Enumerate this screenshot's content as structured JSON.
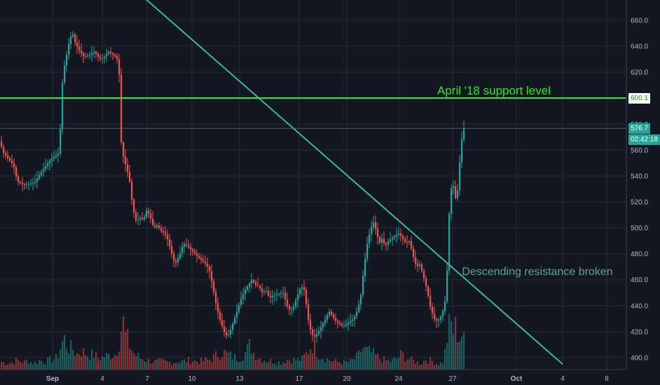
{
  "colors": {
    "background": "#131722",
    "grid": "#242a38",
    "up_candle": "#26a69a",
    "down_candle": "#ef5350",
    "support_line": "#2ee82e",
    "trend_line": "#3bb59b",
    "axis_text": "#b2b5be"
  },
  "price_axis": {
    "ticks": [
      "660.0",
      "640.0",
      "620.0",
      "600.0",
      "580.0",
      "560.0",
      "540.0",
      "520.0",
      "500.0",
      "480.0",
      "460.0",
      "440.0",
      "420.0",
      "400.0"
    ]
  },
  "time_axis": {
    "ticks": [
      "Sep",
      "4",
      "7",
      "10",
      "13",
      "17",
      "20",
      "24",
      "27",
      "Oct",
      "4",
      "8"
    ]
  },
  "price_tags": {
    "support": "600.1",
    "last": "576.7",
    "timer": "02:42:18"
  },
  "annotations": {
    "support_label": "April '18 support level",
    "resistance_label": "Descending resistance broken"
  },
  "chart_data": {
    "type": "candlestick",
    "y_axis_ticks": [
      660,
      640,
      620,
      600,
      580,
      560,
      540,
      520,
      500,
      480,
      460,
      440,
      420,
      400
    ],
    "ylim": [
      394,
      668
    ],
    "x_axis_ticks": [
      "Sep",
      "4",
      "7",
      "10",
      "13",
      "17",
      "20",
      "24",
      "27",
      "Oct",
      "4",
      "8"
    ],
    "horizontal_line": {
      "label": "April '18 support level",
      "value": 600.1
    },
    "trend_line": {
      "label": "Descending resistance broken",
      "from_value": 700,
      "to_value": 395,
      "to_tick": "4"
    },
    "last_price": 576.7,
    "close_path": [
      [
        0,
        567
      ],
      [
        5,
        558
      ],
      [
        10,
        555
      ],
      [
        20,
        548
      ],
      [
        25,
        536
      ],
      [
        35,
        533
      ],
      [
        50,
        535
      ],
      [
        58,
        542
      ],
      [
        66,
        548
      ],
      [
        72,
        552
      ],
      [
        78,
        555
      ],
      [
        85,
        558
      ],
      [
        90,
        618
      ],
      [
        95,
        632
      ],
      [
        100,
        646
      ],
      [
        104,
        650
      ],
      [
        108,
        642
      ],
      [
        112,
        638
      ],
      [
        120,
        632
      ],
      [
        128,
        633
      ],
      [
        135,
        636
      ],
      [
        140,
        632
      ],
      [
        145,
        630
      ],
      [
        150,
        632
      ],
      [
        155,
        636
      ],
      [
        160,
        634
      ],
      [
        165,
        632
      ],
      [
        170,
        628
      ],
      [
        173,
        568
      ],
      [
        176,
        556
      ],
      [
        180,
        548
      ],
      [
        185,
        538
      ],
      [
        190,
        515
      ],
      [
        195,
        505
      ],
      [
        200,
        508
      ],
      [
        205,
        506
      ],
      [
        210,
        514
      ],
      [
        215,
        508
      ],
      [
        220,
        500
      ],
      [
        225,
        502
      ],
      [
        230,
        498
      ],
      [
        238,
        494
      ],
      [
        243,
        485
      ],
      [
        250,
        472
      ],
      [
        256,
        478
      ],
      [
        262,
        488
      ],
      [
        268,
        486
      ],
      [
        275,
        482
      ],
      [
        282,
        478
      ],
      [
        290,
        474
      ],
      [
        295,
        472
      ],
      [
        300,
        466
      ],
      [
        305,
        452
      ],
      [
        310,
        438
      ],
      [
        315,
        428
      ],
      [
        320,
        420
      ],
      [
        325,
        416
      ],
      [
        330,
        422
      ],
      [
        335,
        430
      ],
      [
        340,
        438
      ],
      [
        345,
        446
      ],
      [
        350,
        452
      ],
      [
        355,
        456
      ],
      [
        360,
        460
      ],
      [
        365,
        456
      ],
      [
        370,
        455
      ],
      [
        375,
        450
      ],
      [
        380,
        452
      ],
      [
        385,
        446
      ],
      [
        390,
        448
      ],
      [
        398,
        449
      ],
      [
        405,
        450
      ],
      [
        410,
        440
      ],
      [
        415,
        436
      ],
      [
        420,
        440
      ],
      [
        425,
        448
      ],
      [
        430,
        455
      ],
      [
        435,
        452
      ],
      [
        440,
        430
      ],
      [
        445,
        418
      ],
      [
        450,
        416
      ],
      [
        455,
        420
      ],
      [
        460,
        425
      ],
      [
        465,
        430
      ],
      [
        470,
        436
      ],
      [
        475,
        432
      ],
      [
        480,
        428
      ],
      [
        485,
        426
      ],
      [
        490,
        424
      ],
      [
        495,
        426
      ],
      [
        500,
        428
      ],
      [
        505,
        430
      ],
      [
        510,
        436
      ],
      [
        515,
        446
      ],
      [
        520,
        470
      ],
      [
        525,
        490
      ],
      [
        530,
        500
      ],
      [
        534,
        505
      ],
      [
        538,
        496
      ],
      [
        542,
        488
      ],
      [
        546,
        492
      ],
      [
        550,
        486
      ],
      [
        555,
        490
      ],
      [
        560,
        492
      ],
      [
        565,
        494
      ],
      [
        570,
        496
      ],
      [
        575,
        492
      ],
      [
        580,
        488
      ],
      [
        585,
        490
      ],
      [
        590,
        478
      ],
      [
        595,
        470
      ],
      [
        600,
        472
      ],
      [
        605,
        462
      ],
      [
        610,
        452
      ],
      [
        615,
        438
      ],
      [
        620,
        430
      ],
      [
        625,
        428
      ],
      [
        630,
        432
      ],
      [
        635,
        440
      ],
      [
        638,
        460
      ],
      [
        642,
        518
      ],
      [
        646,
        538
      ],
      [
        650,
        522
      ],
      [
        654,
        530
      ],
      [
        658,
        563
      ],
      [
        662,
        576.7
      ]
    ],
    "volume_path": [
      [
        0,
        0.15
      ],
      [
        8,
        0.12
      ],
      [
        16,
        0.14
      ],
      [
        24,
        0.18
      ],
      [
        32,
        0.15
      ],
      [
        40,
        0.16
      ],
      [
        48,
        0.13
      ],
      [
        56,
        0.18
      ],
      [
        64,
        0.15
      ],
      [
        72,
        0.2
      ],
      [
        80,
        0.22
      ],
      [
        86,
        0.45
      ],
      [
        90,
        0.62
      ],
      [
        94,
        0.48
      ],
      [
        98,
        0.4
      ],
      [
        102,
        0.42
      ],
      [
        108,
        0.3
      ],
      [
        114,
        0.36
      ],
      [
        120,
        0.32
      ],
      [
        126,
        0.28
      ],
      [
        132,
        0.3
      ],
      [
        140,
        0.22
      ],
      [
        148,
        0.25
      ],
      [
        156,
        0.28
      ],
      [
        164,
        0.3
      ],
      [
        170,
        0.6
      ],
      [
        174,
        0.98
      ],
      [
        178,
        0.65
      ],
      [
        182,
        0.55
      ],
      [
        186,
        0.4
      ],
      [
        192,
        0.28
      ],
      [
        200,
        0.22
      ],
      [
        210,
        0.18
      ],
      [
        220,
        0.15
      ],
      [
        230,
        0.16
      ],
      [
        240,
        0.14
      ],
      [
        250,
        0.15
      ],
      [
        260,
        0.16
      ],
      [
        270,
        0.18
      ],
      [
        280,
        0.16
      ],
      [
        290,
        0.17
      ],
      [
        300,
        0.2
      ],
      [
        310,
        0.3
      ],
      [
        318,
        0.34
      ],
      [
        326,
        0.28
      ],
      [
        334,
        0.24
      ],
      [
        342,
        0.22
      ],
      [
        350,
        0.34
      ],
      [
        356,
        0.48
      ],
      [
        362,
        0.3
      ],
      [
        370,
        0.22
      ],
      [
        380,
        0.18
      ],
      [
        390,
        0.16
      ],
      [
        400,
        0.14
      ],
      [
        410,
        0.2
      ],
      [
        420,
        0.18
      ],
      [
        430,
        0.2
      ],
      [
        438,
        0.34
      ],
      [
        444,
        0.5
      ],
      [
        450,
        0.36
      ],
      [
        456,
        0.28
      ],
      [
        462,
        0.22
      ],
      [
        470,
        0.18
      ],
      [
        480,
        0.15
      ],
      [
        490,
        0.14
      ],
      [
        500,
        0.16
      ],
      [
        510,
        0.26
      ],
      [
        516,
        0.42
      ],
      [
        522,
        0.36
      ],
      [
        528,
        0.34
      ],
      [
        534,
        0.28
      ],
      [
        540,
        0.22
      ],
      [
        548,
        0.18
      ],
      [
        556,
        0.16
      ],
      [
        564,
        0.2
      ],
      [
        572,
        0.3
      ],
      [
        580,
        0.22
      ],
      [
        590,
        0.16
      ],
      [
        600,
        0.12
      ],
      [
        606,
        0.2
      ],
      [
        612,
        0.18
      ],
      [
        620,
        0.14
      ],
      [
        626,
        0.1
      ],
      [
        632,
        0.16
      ],
      [
        636,
        0.5
      ],
      [
        638,
        0.72
      ],
      [
        642,
        0.9
      ],
      [
        646,
        0.75
      ],
      [
        650,
        0.82
      ],
      [
        654,
        0.6
      ],
      [
        658,
        0.68
      ],
      [
        662,
        0.5
      ]
    ]
  }
}
